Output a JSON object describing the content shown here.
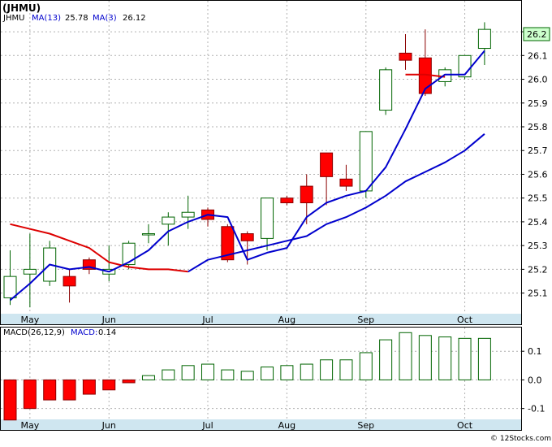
{
  "header": {
    "title": "(JHMU)",
    "ticker": "JHMU",
    "ma13_label": "MA(13)",
    "ma13_value": "25.78",
    "ma3_label": "MA(3)",
    "ma3_value": "26.12"
  },
  "macd_header": {
    "label": "MACD(26,12,9)",
    "macd_label": "MACD:",
    "macd_value": "0.14"
  },
  "last_price_label": "26.2",
  "footer_credit": "© 12Stocks.com",
  "colors": {
    "up": "#ffffff",
    "up_border": "#006400",
    "down": "#ff0000",
    "down_border": "#8b0000",
    "ma3": "#0000cd",
    "ma13": "#0000cd",
    "ma_red": "#dd0000",
    "grid": "#b0b0b0",
    "axis_band": "#cfe6f0",
    "price_box_fill": "#ccffcc",
    "price_box_stroke": "#006400"
  },
  "chart_data": [
    {
      "type": "candlestick",
      "ylim": [
        25.02,
        26.32
      ],
      "price_ticks": [
        "25.1",
        "25.2",
        "25.3",
        "25.4",
        "25.5",
        "25.6",
        "25.7",
        "25.8",
        "25.9",
        "26.0",
        "26.1",
        "26.2"
      ],
      "month_labels": [
        "May",
        "Jun",
        "Jul",
        "Aug",
        "Sep",
        "Oct"
      ],
      "candles": [
        {
          "o": 25.08,
          "h": 25.28,
          "l": 25.05,
          "c": 25.17
        },
        {
          "o": 25.18,
          "h": 25.35,
          "l": 25.04,
          "c": 25.2
        },
        {
          "o": 25.15,
          "h": 25.32,
          "l": 25.13,
          "c": 25.29
        },
        {
          "o": 25.17,
          "h": 25.2,
          "l": 25.06,
          "c": 25.13
        },
        {
          "o": 25.24,
          "h": 25.25,
          "l": 25.18,
          "c": 25.2
        },
        {
          "o": 25.18,
          "h": 25.3,
          "l": 25.15,
          "c": 25.2
        },
        {
          "o": 25.22,
          "h": 25.32,
          "l": 25.2,
          "c": 25.31
        },
        {
          "o": 25.35,
          "h": 25.39,
          "l": 25.31,
          "c": 25.35
        },
        {
          "o": 25.39,
          "h": 25.44,
          "l": 25.3,
          "c": 25.42
        },
        {
          "o": 25.42,
          "h": 25.51,
          "l": 25.37,
          "c": 25.44
        },
        {
          "o": 25.45,
          "h": 25.46,
          "l": 25.38,
          "c": 25.41
        },
        {
          "o": 25.38,
          "h": 25.39,
          "l": 25.23,
          "c": 25.24
        },
        {
          "o": 25.35,
          "h": 25.36,
          "l": 25.22,
          "c": 25.32
        },
        {
          "o": 25.33,
          "h": 25.5,
          "l": 25.28,
          "c": 25.5
        },
        {
          "o": 25.5,
          "h": 25.51,
          "l": 25.47,
          "c": 25.48
        },
        {
          "o": 25.55,
          "h": 25.6,
          "l": 25.39,
          "c": 25.48
        },
        {
          "o": 25.69,
          "h": 25.69,
          "l": 25.47,
          "c": 25.59
        },
        {
          "o": 25.58,
          "h": 25.64,
          "l": 25.53,
          "c": 25.55
        },
        {
          "o": 25.53,
          "h": 25.78,
          "l": 25.5,
          "c": 25.78
        },
        {
          "o": 25.87,
          "h": 26.05,
          "l": 25.85,
          "c": 26.04
        },
        {
          "o": 26.11,
          "h": 26.19,
          "l": 26.04,
          "c": 26.08
        },
        {
          "o": 26.09,
          "h": 26.21,
          "l": 25.93,
          "c": 25.94
        },
        {
          "o": 25.99,
          "h": 26.05,
          "l": 25.97,
          "c": 26.04
        },
        {
          "o": 26.01,
          "h": 26.1,
          "l": 26.0,
          "c": 26.1
        },
        {
          "o": 26.13,
          "h": 26.24,
          "l": 26.06,
          "c": 26.21
        }
      ],
      "ma3": [
        25.07,
        25.14,
        25.22,
        25.2,
        25.21,
        25.19,
        25.23,
        25.28,
        25.36,
        25.4,
        25.43,
        25.42,
        25.24,
        25.27,
        25.29,
        25.42,
        25.48,
        25.51,
        25.53,
        25.63,
        25.79,
        25.96,
        26.02,
        26.02,
        26.12
      ],
      "ma13": [
        null,
        null,
        null,
        null,
        null,
        null,
        null,
        null,
        null,
        25.19,
        25.24,
        25.26,
        25.28,
        25.3,
        25.32,
        25.34,
        25.39,
        25.42,
        25.46,
        25.51,
        25.57,
        25.61,
        25.65,
        25.7,
        25.77
      ],
      "ma_red": [
        25.39,
        25.37,
        25.35,
        25.32,
        25.29,
        25.23,
        25.21,
        25.2,
        25.2,
        25.19,
        null,
        null,
        null,
        null,
        null,
        null,
        null,
        null,
        null,
        null,
        26.02,
        26.02,
        26.01,
        null,
        null
      ]
    },
    {
      "type": "bar",
      "series": [
        {
          "name": "MACD",
          "values": [
            -0.14,
            -0.1,
            -0.07,
            -0.07,
            -0.05,
            -0.035,
            -0.01,
            0.015,
            0.035,
            0.05,
            0.055,
            0.035,
            0.03,
            0.045,
            0.05,
            0.055,
            0.07,
            0.07,
            0.095,
            0.14,
            0.165,
            0.155,
            0.15,
            0.145,
            0.145
          ]
        }
      ],
      "ylim": [
        -0.135,
        0.18
      ],
      "ticks": [
        "0.1",
        "0.0",
        "-0.1"
      ]
    }
  ]
}
